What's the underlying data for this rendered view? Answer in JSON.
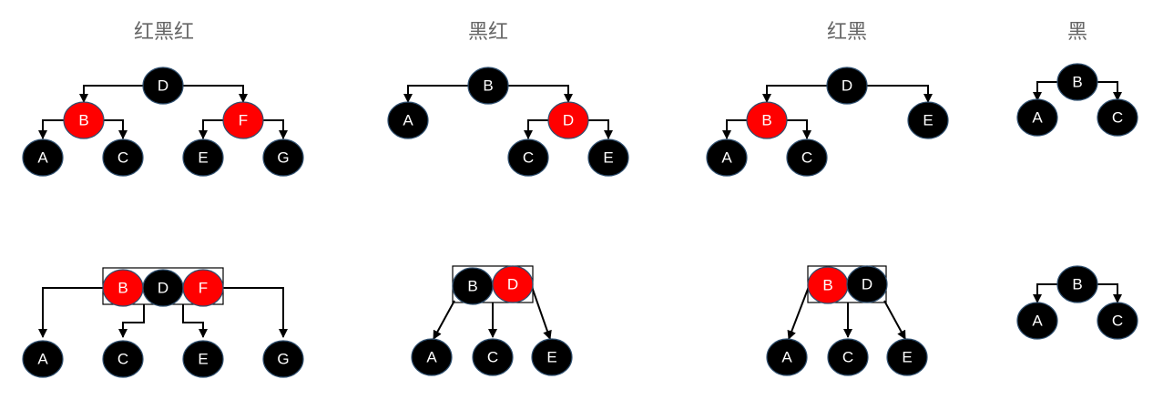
{
  "columns": [
    {
      "title": "红黑红"
    },
    {
      "title": "黑红"
    },
    {
      "title": "红黑"
    },
    {
      "title": "黑"
    }
  ],
  "colors": {
    "red": "#ff0000",
    "black": "#000000",
    "outline": "#2f4f6f",
    "line": "#000000",
    "label": "#ffffff"
  },
  "diagrams": {
    "rbr_tree": {
      "nodes": [
        {
          "id": "D",
          "label": "D",
          "color": "black"
        },
        {
          "id": "B",
          "label": "B",
          "color": "red"
        },
        {
          "id": "F",
          "label": "F",
          "color": "red"
        },
        {
          "id": "A",
          "label": "A",
          "color": "black"
        },
        {
          "id": "C",
          "label": "C",
          "color": "black"
        },
        {
          "id": "E",
          "label": "E",
          "color": "black"
        },
        {
          "id": "G",
          "label": "G",
          "color": "black"
        }
      ]
    },
    "br_tree": {
      "nodes": [
        {
          "id": "B",
          "label": "B",
          "color": "black"
        },
        {
          "id": "A",
          "label": "A",
          "color": "black"
        },
        {
          "id": "D",
          "label": "D",
          "color": "red"
        },
        {
          "id": "C",
          "label": "C",
          "color": "black"
        },
        {
          "id": "E",
          "label": "E",
          "color": "black"
        }
      ]
    },
    "rb_tree": {
      "nodes": [
        {
          "id": "D",
          "label": "D",
          "color": "black"
        },
        {
          "id": "B",
          "label": "B",
          "color": "red"
        },
        {
          "id": "E",
          "label": "E",
          "color": "black"
        },
        {
          "id": "A",
          "label": "A",
          "color": "black"
        },
        {
          "id": "C",
          "label": "C",
          "color": "black"
        }
      ]
    },
    "b_tree": {
      "nodes": [
        {
          "id": "B",
          "label": "B",
          "color": "black"
        },
        {
          "id": "A",
          "label": "A",
          "color": "black"
        },
        {
          "id": "C",
          "label": "C",
          "color": "black"
        }
      ]
    },
    "rbr_btree": {
      "nodes": [
        {
          "id": "B",
          "label": "B",
          "color": "red"
        },
        {
          "id": "D",
          "label": "D",
          "color": "black"
        },
        {
          "id": "F",
          "label": "F",
          "color": "red"
        },
        {
          "id": "A",
          "label": "A",
          "color": "black"
        },
        {
          "id": "C",
          "label": "C",
          "color": "black"
        },
        {
          "id": "E",
          "label": "E",
          "color": "black"
        },
        {
          "id": "G",
          "label": "G",
          "color": "black"
        }
      ]
    },
    "br_btree": {
      "nodes": [
        {
          "id": "B",
          "label": "B",
          "color": "black"
        },
        {
          "id": "D",
          "label": "D",
          "color": "red"
        },
        {
          "id": "A",
          "label": "A",
          "color": "black"
        },
        {
          "id": "C",
          "label": "C",
          "color": "black"
        },
        {
          "id": "E",
          "label": "E",
          "color": "black"
        }
      ]
    },
    "rb_btree": {
      "nodes": [
        {
          "id": "B",
          "label": "B",
          "color": "red"
        },
        {
          "id": "D",
          "label": "D",
          "color": "black"
        },
        {
          "id": "A",
          "label": "A",
          "color": "black"
        },
        {
          "id": "C",
          "label": "C",
          "color": "black"
        },
        {
          "id": "E",
          "label": "E",
          "color": "black"
        }
      ]
    },
    "b_btree": {
      "nodes": [
        {
          "id": "B",
          "label": "B",
          "color": "black"
        },
        {
          "id": "A",
          "label": "A",
          "color": "black"
        },
        {
          "id": "C",
          "label": "C",
          "color": "black"
        }
      ]
    }
  }
}
